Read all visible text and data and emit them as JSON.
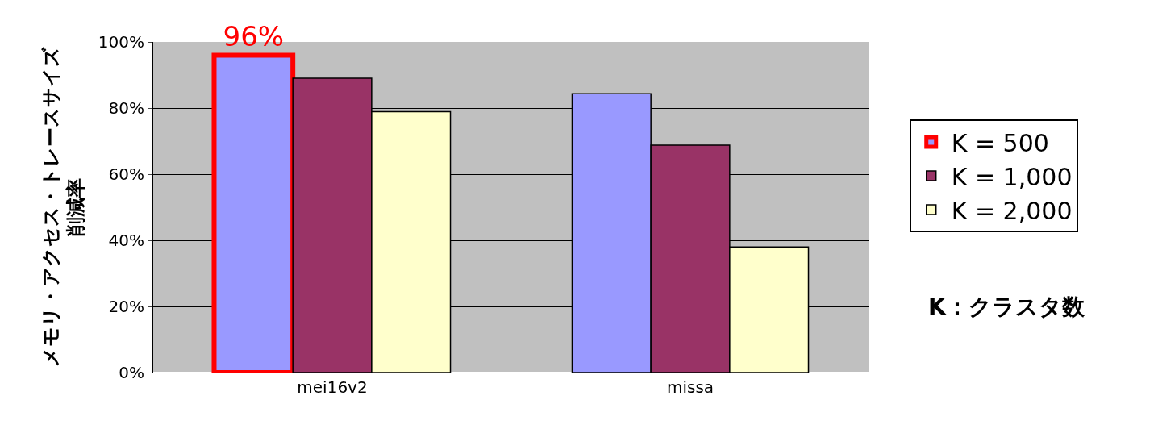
{
  "chart_data": {
    "type": "bar",
    "ylabel": "メモリ・アクセス・トレースサイズ削減率",
    "categories": [
      "mei16v2",
      "missa"
    ],
    "series": [
      {
        "name": "K = 500",
        "color": "#9999ff",
        "values": [
          96,
          84.3
        ],
        "value_labels": [
          "96%",
          null
        ]
      },
      {
        "name": "K = 1,000",
        "color": "#993366",
        "values": [
          89.0,
          68.8
        ]
      },
      {
        "name": "K = 2,000",
        "color": "#ffffcc",
        "values": [
          78.9,
          38.0
        ]
      }
    ],
    "ylim": [
      0,
      100
    ],
    "yticks": [
      {
        "value": 0,
        "label": "0%"
      },
      {
        "value": 20,
        "label": "20%"
      },
      {
        "value": 40,
        "label": "40%"
      },
      {
        "value": 60,
        "label": "60%"
      },
      {
        "value": 80,
        "label": "80%"
      },
      {
        "value": 100,
        "label": "100%"
      }
    ],
    "grid": "y",
    "legend": "right",
    "annotations": [
      "K：クラスタ数"
    ]
  }
}
